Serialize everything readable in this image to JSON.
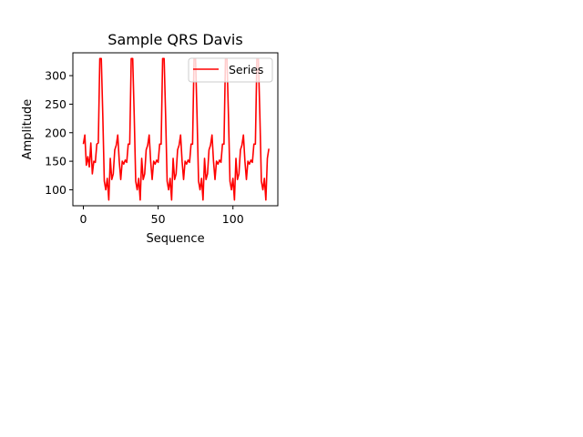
{
  "chart_data": {
    "type": "line",
    "title": "Sample QRS Davis",
    "xlabel": "Sequence",
    "ylabel": "Amplitude",
    "xlim": [
      -7,
      130
    ],
    "ylim": [
      72,
      340
    ],
    "xticks": [
      0,
      50,
      100
    ],
    "yticks": [
      100,
      150,
      200,
      250,
      300
    ],
    "grid": false,
    "legend_position": "upper right",
    "series": [
      {
        "name": "Series",
        "color": "#ff0000",
        "x": [
          0,
          1,
          2,
          3,
          4,
          5,
          6,
          7,
          8,
          9,
          10,
          11,
          12,
          13,
          14,
          15,
          16,
          17,
          18,
          19,
          20,
          21,
          22,
          23,
          24,
          25,
          26,
          27,
          28,
          29,
          30,
          31,
          32,
          33,
          34,
          35,
          36,
          37,
          38,
          39,
          40,
          41,
          42,
          43,
          44,
          45,
          46,
          47,
          48,
          49,
          50,
          51,
          52,
          53,
          54,
          55,
          56,
          57,
          58,
          59,
          60,
          61,
          62,
          63,
          64,
          65,
          66,
          67,
          68,
          69,
          70,
          71,
          72,
          73,
          74,
          75,
          76,
          77,
          78,
          79,
          80,
          81,
          82,
          83,
          84,
          85,
          86,
          87,
          88,
          89,
          90,
          91,
          92,
          93,
          94,
          95,
          96,
          97,
          98,
          99,
          100,
          101,
          102,
          103,
          104,
          105,
          106,
          107,
          108,
          109,
          110,
          111,
          112,
          113,
          114,
          115,
          116,
          117,
          118,
          119,
          120,
          121,
          122,
          123,
          124
        ],
        "y": [
          180,
          196,
          143,
          158,
          140,
          182,
          128,
          150,
          148,
          180,
          182,
          330,
          330,
          230,
          115,
          100,
          120,
          82,
          155,
          118,
          128,
          170,
          178,
          196,
          150,
          118,
          150,
          145,
          152,
          148,
          180,
          180,
          330,
          330,
          230,
          115,
          100,
          120,
          82,
          155,
          118,
          128,
          170,
          178,
          196,
          150,
          118,
          150,
          145,
          152,
          148,
          180,
          180,
          330,
          330,
          230,
          115,
          100,
          120,
          82,
          155,
          118,
          128,
          170,
          178,
          196,
          150,
          118,
          150,
          145,
          152,
          148,
          180,
          180,
          330,
          330,
          230,
          115,
          100,
          120,
          82,
          155,
          118,
          128,
          170,
          178,
          196,
          150,
          118,
          150,
          145,
          152,
          148,
          180,
          180,
          330,
          330,
          230,
          115,
          100,
          120,
          82,
          155,
          118,
          128,
          170,
          178,
          196,
          150,
          118,
          150,
          145,
          152,
          148,
          180,
          180,
          330,
          330,
          230,
          115,
          100,
          120,
          82,
          155,
          172
        ]
      }
    ]
  }
}
